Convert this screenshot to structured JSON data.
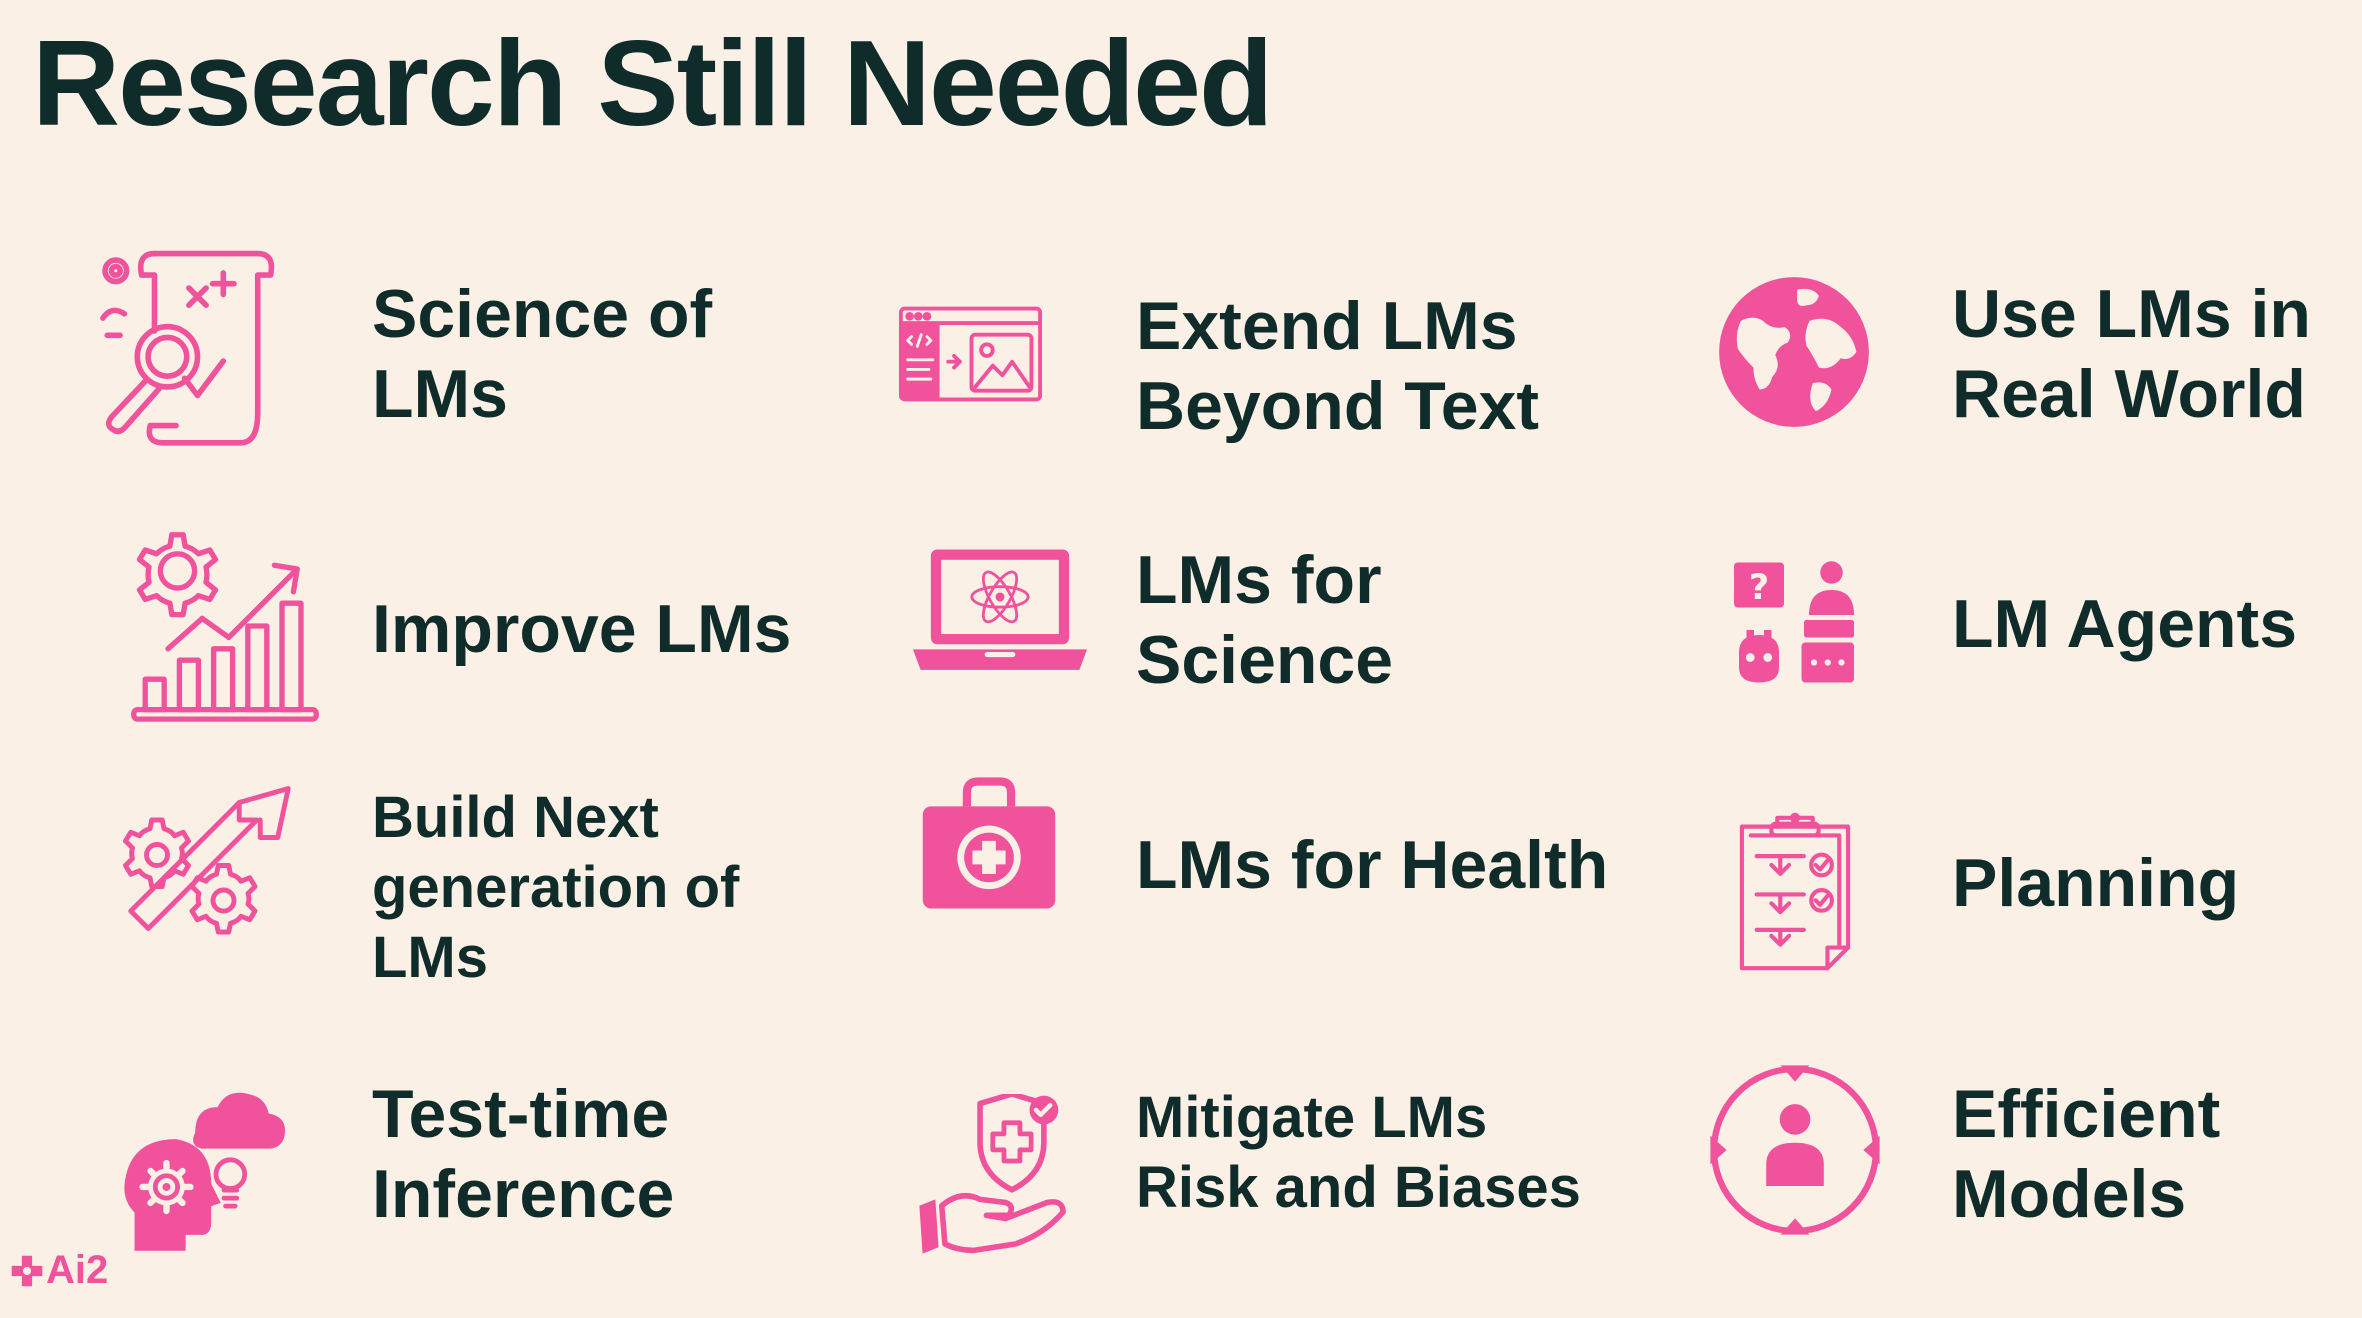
{
  "title": "Research Still Needed",
  "accent_color": "#F0529C",
  "text_color": "#0F2B2A",
  "background_color": "#FAF0E6",
  "items": [
    {
      "label": "Science of\nLMs",
      "icon": "scroll-magnifier-icon"
    },
    {
      "label": "Extend LMs\nBeyond Text",
      "icon": "code-to-image-icon"
    },
    {
      "label": "Use LMs in\nReal World",
      "icon": "globe-icon"
    },
    {
      "label": "Improve LMs",
      "icon": "gear-growth-chart-icon"
    },
    {
      "label": "LMs for\nScience",
      "icon": "laptop-atom-icon"
    },
    {
      "label": "LM Agents",
      "icon": "agent-robot-chat-icon"
    },
    {
      "label": "Build Next\ngeneration of\nLMs",
      "icon": "gears-arrow-icon"
    },
    {
      "label": "LMs for Health",
      "icon": "medical-kit-icon"
    },
    {
      "label": "Planning",
      "icon": "checklist-clipboard-icon"
    },
    {
      "label": "Test-time\nInference",
      "icon": "head-gear-cloud-bulb-icon"
    },
    {
      "label": "Mitigate LMs\nRisk and Biases",
      "icon": "hand-shield-icon"
    },
    {
      "label": "Efficient\nModels",
      "icon": "person-target-icon"
    }
  ],
  "logo": {
    "text": "Ai2",
    "icon": "ai2-sparkle-icon"
  }
}
